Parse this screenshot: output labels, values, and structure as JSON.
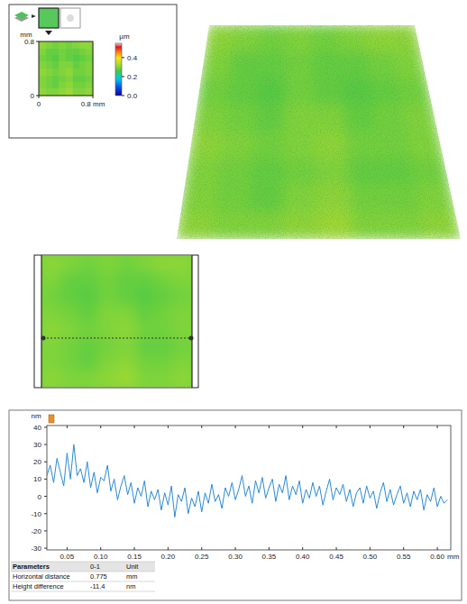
{
  "chart_data": [
    {
      "type": "heatmap",
      "xlim": [
        0,
        0.8
      ],
      "ylim": [
        0,
        0.8
      ],
      "xticks": [
        0,
        {
          "value": 0.8,
          "label": "0.8 mm"
        }
      ],
      "yticks": [
        0,
        0.8
      ],
      "y_label": "mm",
      "cells": [
        [
          0.31,
          0.3,
          0.29,
          0.3,
          0.29,
          0.3,
          0.31,
          0.31
        ],
        [
          0.3,
          0.28,
          0.28,
          0.29,
          0.28,
          0.28,
          0.29,
          0.3
        ],
        [
          0.29,
          0.28,
          0.27,
          0.29,
          0.28,
          0.27,
          0.28,
          0.29
        ],
        [
          0.3,
          0.29,
          0.28,
          0.3,
          0.3,
          0.28,
          0.29,
          0.3
        ],
        [
          0.31,
          0.3,
          0.29,
          0.3,
          0.31,
          0.29,
          0.29,
          0.3
        ],
        [
          0.3,
          0.29,
          0.28,
          0.29,
          0.3,
          0.28,
          0.28,
          0.29
        ],
        [
          0.3,
          0.29,
          0.28,
          0.3,
          0.31,
          0.29,
          0.29,
          0.3
        ],
        [
          0.31,
          0.3,
          0.3,
          0.31,
          0.32,
          0.3,
          0.3,
          0.31
        ]
      ],
      "colorbar": {
        "label": "µm",
        "range": [
          0,
          0.55
        ],
        "ticks": [
          {
            "value": 0,
            "label": "0.0"
          },
          0.2,
          0.4
        ]
      }
    },
    {
      "type": "line",
      "x": [
        0.02,
        0.025,
        0.03,
        0.035,
        0.04,
        0.045,
        0.05,
        0.055,
        0.06,
        0.065,
        0.07,
        0.075,
        0.08,
        0.085,
        0.09,
        0.095,
        0.1,
        0.105,
        0.11,
        0.115,
        0.12,
        0.125,
        0.13,
        0.135,
        0.14,
        0.145,
        0.15,
        0.155,
        0.16,
        0.165,
        0.17,
        0.175,
        0.18,
        0.185,
        0.19,
        0.195,
        0.2,
        0.205,
        0.21,
        0.215,
        0.22,
        0.225,
        0.23,
        0.235,
        0.24,
        0.245,
        0.25,
        0.255,
        0.26,
        0.265,
        0.27,
        0.275,
        0.28,
        0.285,
        0.29,
        0.295,
        0.3,
        0.305,
        0.31,
        0.315,
        0.32,
        0.325,
        0.33,
        0.335,
        0.34,
        0.345,
        0.35,
        0.355,
        0.36,
        0.365,
        0.37,
        0.375,
        0.38,
        0.385,
        0.39,
        0.395,
        0.4,
        0.405,
        0.41,
        0.415,
        0.42,
        0.425,
        0.43,
        0.435,
        0.44,
        0.445,
        0.45,
        0.455,
        0.46,
        0.465,
        0.47,
        0.475,
        0.48,
        0.485,
        0.49,
        0.495,
        0.5,
        0.505,
        0.51,
        0.515,
        0.52,
        0.525,
        0.53,
        0.535,
        0.54,
        0.545,
        0.55,
        0.555,
        0.56,
        0.565,
        0.57,
        0.575,
        0.58,
        0.585,
        0.59,
        0.595,
        0.6,
        0.605,
        0.61,
        0.615
      ],
      "series": [
        {
          "color": "#2a8ad8",
          "values": [
            12,
            18,
            8,
            22,
            14,
            6,
            25,
            10,
            30,
            12,
            16,
            8,
            20,
            5,
            14,
            2,
            11,
            9,
            18,
            3,
            10,
            -2,
            6,
            12,
            1,
            8,
            -4,
            5,
            0,
            9,
            -6,
            3,
            -2,
            4,
            -8,
            2,
            -5,
            6,
            -12,
            1,
            -3,
            5,
            -10,
            -1,
            -6,
            3,
            -9,
            2,
            -4,
            7,
            -3,
            1,
            -7,
            5,
            0,
            8,
            -2,
            4,
            12,
            0,
            6,
            -4,
            9,
            2,
            11,
            -1,
            5,
            10,
            -3,
            7,
            2,
            12,
            -2,
            6,
            1,
            9,
            -4,
            4,
            -1,
            8,
            0,
            6,
            -5,
            3,
            10,
            -2,
            5,
            1,
            7,
            -3,
            4,
            -6,
            2,
            5,
            -4,
            6,
            -1,
            3,
            -7,
            2,
            8,
            -3,
            4,
            -5,
            1,
            6,
            -4,
            2,
            -6,
            3,
            -2,
            4,
            -8,
            1,
            -3,
            5,
            -6,
            0,
            -4,
            -2
          ]
        }
      ],
      "xlim": [
        0.02,
        0.62
      ],
      "ylim": [
        -31,
        41
      ],
      "xticks": [
        0.05,
        {
          "value": 0.1,
          "label": "0.10"
        },
        0.15,
        {
          "value": 0.2,
          "label": "0.20"
        },
        0.25,
        {
          "value": 0.3,
          "label": "0.30"
        },
        0.35,
        {
          "value": 0.4,
          "label": "0.40"
        },
        0.45,
        {
          "value": 0.5,
          "label": "0.50"
        },
        0.55,
        {
          "value": 0.6,
          "label": "0.60"
        }
      ],
      "yticks": [
        -30,
        -20,
        -10,
        0,
        10,
        20,
        30,
        40
      ],
      "x_label": "mm",
      "y_label": "nm",
      "grid": false
    }
  ],
  "table": {
    "header": [
      "Parameters",
      "0-1",
      "Unit"
    ],
    "rows": [
      [
        "Horizontal distance",
        0.775,
        "mm"
      ],
      [
        "Height difference",
        -11.4,
        "nm"
      ]
    ]
  }
}
